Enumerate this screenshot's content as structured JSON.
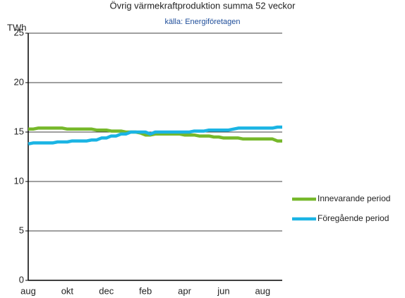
{
  "chart_data": {
    "type": "line",
    "title": "Övrig värmekraftproduktion  summa 52 veckor",
    "subtitle": "källa: Energiföretagen",
    "y_label": "TWh",
    "categories": [
      "aug",
      null,
      null,
      null,
      null,
      null,
      null,
      null,
      "okt",
      null,
      null,
      null,
      null,
      null,
      null,
      null,
      "dec",
      null,
      null,
      null,
      null,
      null,
      null,
      null,
      "feb",
      null,
      null,
      null,
      null,
      null,
      null,
      null,
      "apr",
      null,
      null,
      null,
      null,
      null,
      null,
      null,
      "jun",
      null,
      null,
      null,
      null,
      null,
      null,
      null,
      "aug",
      null,
      null,
      null,
      null
    ],
    "series": [
      {
        "name": "Innevarande period",
        "color": "#76b82a",
        "values": [
          15.3,
          15.3,
          15.4,
          15.4,
          15.4,
          15.4,
          15.4,
          15.4,
          15.3,
          15.3,
          15.3,
          15.3,
          15.3,
          15.3,
          15.2,
          15.2,
          15.2,
          15.1,
          15.1,
          15.1,
          15.0,
          15.0,
          15.0,
          14.9,
          14.7,
          14.7,
          14.8,
          14.8,
          14.8,
          14.8,
          14.8,
          14.8,
          14.7,
          14.7,
          14.7,
          14.6,
          14.6,
          14.6,
          14.5,
          14.5,
          14.4,
          14.4,
          14.4,
          14.4,
          14.3,
          14.3,
          14.3,
          14.3,
          14.3,
          14.3,
          14.3,
          14.1,
          14.1
        ]
      },
      {
        "name": "Föregående period",
        "color": "#1ab4e4",
        "values": [
          13.8,
          13.9,
          13.9,
          13.9,
          13.9,
          13.9,
          14.0,
          14.0,
          14.0,
          14.1,
          14.1,
          14.1,
          14.1,
          14.2,
          14.2,
          14.4,
          14.4,
          14.6,
          14.6,
          14.8,
          14.8,
          15.0,
          15.0,
          15.0,
          15.0,
          14.8,
          15.0,
          15.0,
          15.0,
          15.0,
          15.0,
          15.0,
          15.0,
          15.0,
          15.1,
          15.1,
          15.1,
          15.2,
          15.2,
          15.2,
          15.2,
          15.2,
          15.3,
          15.4,
          15.4,
          15.4,
          15.4,
          15.4,
          15.4,
          15.4,
          15.4,
          15.5,
          15.5
        ]
      }
    ],
    "ylim": [
      0,
      25
    ],
    "yticks": [
      0,
      5,
      10,
      15,
      20,
      25
    ],
    "grid": true,
    "legend": "right"
  }
}
